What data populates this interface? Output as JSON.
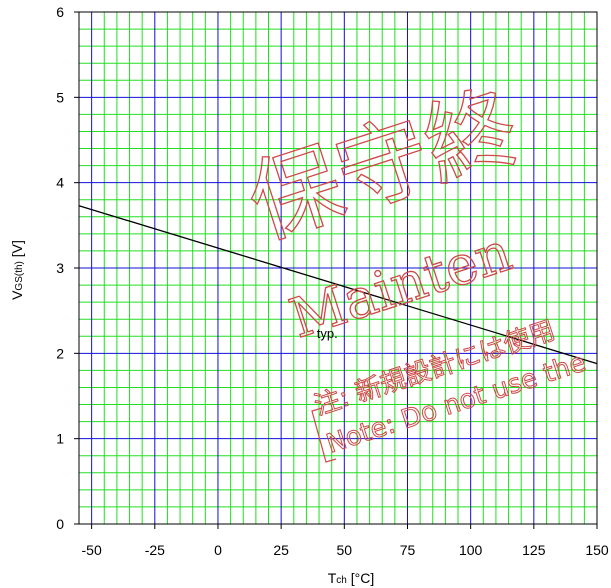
{
  "chart_data": {
    "type": "line",
    "title": "",
    "xlabel": "T",
    "xlabel_sub": "ch",
    "xlabel_unit": " [°C]",
    "ylabel": "V",
    "ylabel_sub": "GS(th)",
    "ylabel_unit": " [V]",
    "xlim": [
      -55,
      150
    ],
    "ylim": [
      0,
      6
    ],
    "x_ticks": [
      -50,
      -25,
      0,
      25,
      50,
      75,
      100,
      125,
      150
    ],
    "y_ticks": [
      0,
      1,
      2,
      3,
      4,
      5,
      6
    ],
    "grid": true,
    "minor_grid_step_x": 5,
    "minor_grid_step_y": 0.2,
    "grid_colors": {
      "major": "#1010d8",
      "minor": "#20e020"
    },
    "series": [
      {
        "name": "typ.",
        "x": [
          -55,
          150
        ],
        "y": [
          3.73,
          1.88
        ],
        "color": "#000000"
      }
    ],
    "annotations": [
      {
        "text": "typ.",
        "x": 47,
        "y": 2.25
      }
    ]
  },
  "watermark": {
    "kanji": "保守終",
    "maintenance": "Mainten",
    "line1": "注: 新規設計には使用",
    "line2": "Note: Do not use the",
    "color": "#d04848"
  }
}
